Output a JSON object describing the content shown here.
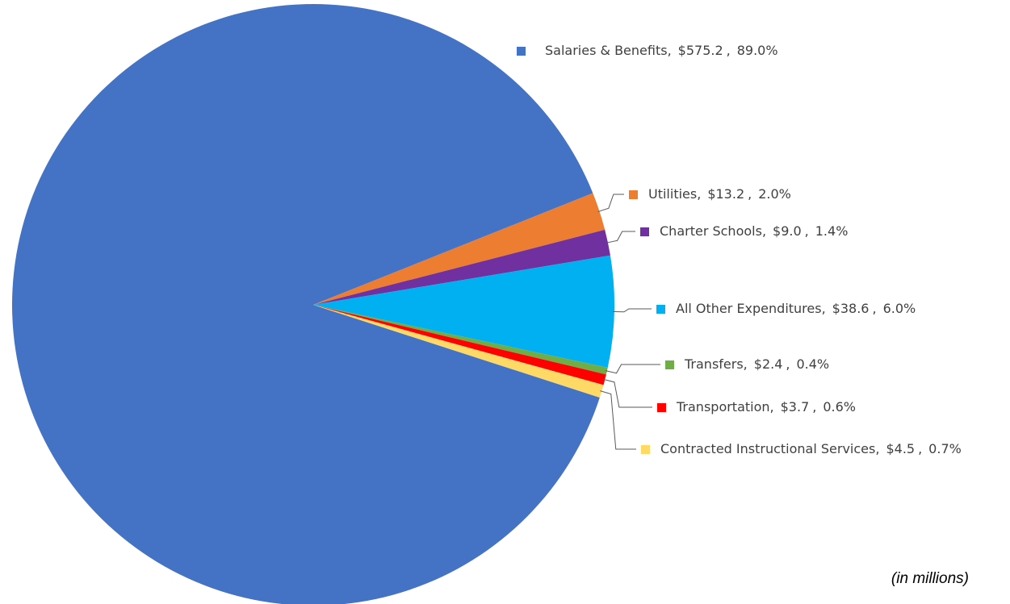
{
  "chart_data": {
    "type": "pie",
    "note": "(in millions)",
    "categories": [
      "Salaries & Benefits",
      "Utilities",
      "Charter Schools",
      "All Other Expenditures",
      "Transfers",
      "Transportation",
      "Contracted Instructional Services"
    ],
    "values": [
      575.2,
      13.2,
      9.0,
      38.6,
      2.4,
      3.7,
      4.5
    ],
    "value_labels": [
      "$575.2",
      "$13.2",
      "$9.0",
      "$38.6",
      "$2.4",
      "$3.7",
      "$4.5"
    ],
    "percentages": [
      89.0,
      2.0,
      1.4,
      6.0,
      0.4,
      0.6,
      0.7
    ],
    "percentage_labels": [
      "89.0%",
      "2.0%",
      "1.4%",
      "6.0%",
      "0.4%",
      "0.6%",
      "0.7%"
    ],
    "separator": ",",
    "colors": [
      "#4472c4",
      "#ed7d31",
      "#7030a0",
      "#00b0f0",
      "#70ad47",
      "#ff0000",
      "#ffd966"
    ]
  }
}
